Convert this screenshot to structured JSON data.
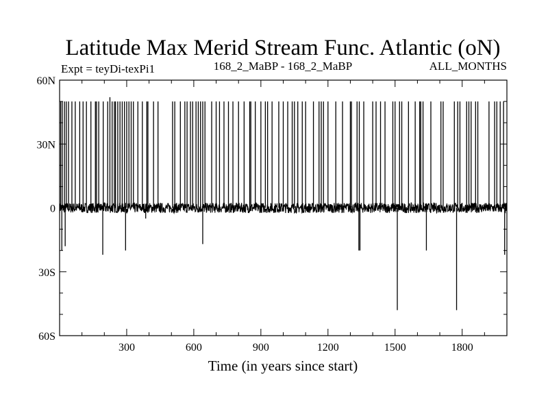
{
  "chart_data": {
    "type": "line",
    "title": "Latitude Max Merid Stream Func. Atlantic (oN)",
    "subtitle_left": "Expt = teyDi-texPi1",
    "subtitle_center": "168_2_MaBP - 168_2_MaBP",
    "subtitle_right": "ALL_MONTHS",
    "xlabel": "Time (in years since start)",
    "ylabel": "",
    "xlim": [
      0,
      2000
    ],
    "ylim": [
      -60,
      60
    ],
    "xticks": [
      300,
      600,
      900,
      1200,
      1500,
      1800
    ],
    "xtick_labels": [
      "300",
      "600",
      "900",
      "1200",
      "1500",
      "1800"
    ],
    "yticks": [
      -60,
      -30,
      0,
      30,
      60
    ],
    "ytick_labels": [
      "60S",
      "30S",
      "0",
      "30N",
      "60N"
    ],
    "grid": false,
    "legend": "none",
    "line_color": "#000000",
    "series_note_baseline": 0,
    "upward_spike_years": [
      5,
      12,
      22,
      30,
      40,
      55,
      70,
      90,
      105,
      120,
      140,
      160,
      165,
      175,
      195,
      215,
      225,
      235,
      245,
      250,
      260,
      270,
      280,
      290,
      300,
      310,
      320,
      330,
      350,
      370,
      390,
      395,
      420,
      440,
      505,
      515,
      540,
      560,
      570,
      585,
      595,
      610,
      620,
      630,
      640,
      650,
      680,
      700,
      715,
      735,
      755,
      775,
      800,
      825,
      850,
      855,
      875,
      900,
      920,
      930,
      950,
      980,
      1000,
      1020,
      1040,
      1050,
      1065,
      1085,
      1100,
      1135,
      1160,
      1170,
      1180,
      1200,
      1235,
      1265,
      1300,
      1305,
      1330,
      1340,
      1360,
      1400,
      1415,
      1435,
      1455,
      1490,
      1500,
      1520,
      1530,
      1560,
      1590,
      1610,
      1615,
      1625,
      1660,
      1705,
      1715,
      1765,
      1780,
      1790,
      1820,
      1830,
      1840,
      1860,
      1870,
      1920,
      1945,
      1955,
      1970,
      1985
    ],
    "upward_spike_values": [
      50,
      50,
      50,
      50,
      50,
      50,
      50,
      50,
      50,
      50,
      50,
      50,
      50,
      50,
      50,
      50,
      52,
      50,
      50,
      50,
      50,
      50,
      50,
      50,
      50,
      50,
      50,
      50,
      50,
      50,
      50,
      50,
      50,
      50,
      50,
      50,
      50,
      50,
      50,
      50,
      50,
      50,
      50,
      50,
      50,
      50,
      50,
      50,
      50,
      50,
      50,
      50,
      50,
      50,
      50,
      50,
      50,
      50,
      50,
      50,
      50,
      50,
      50,
      50,
      50,
      50,
      50,
      50,
      50,
      50,
      50,
      50,
      50,
      50,
      50,
      50,
      50,
      50,
      50,
      50,
      50,
      50,
      50,
      50,
      50,
      50,
      50,
      50,
      50,
      50,
      50,
      50,
      50,
      50,
      50,
      50,
      50,
      50,
      50,
      50,
      50,
      50,
      50,
      50,
      50,
      50,
      50,
      50,
      50,
      50
    ],
    "downward_spike_years": [
      10,
      25,
      193,
      295,
      385,
      640,
      1338,
      1343,
      1510,
      1640,
      1775,
      1990
    ],
    "downward_spike_values": [
      -20,
      -18,
      -22,
      -20,
      -5,
      -17,
      -20,
      -20,
      -48,
      -20,
      -48,
      -22
    ]
  }
}
